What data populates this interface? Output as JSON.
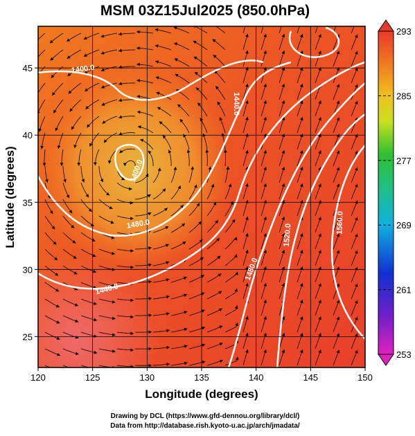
{
  "title": "MSM 03Z15Jul2025 (850.0hPa)",
  "x_label": "Longitude (degrees)",
  "y_label": "Latitude  (degrees)",
  "xlim": [
    120,
    150
  ],
  "xticks": [
    120,
    125,
    130,
    135,
    140,
    145,
    150
  ],
  "ylim": [
    22.7,
    48.1
  ],
  "yticks": [
    25,
    30,
    35,
    40,
    45
  ],
  "colorbar": {
    "lim": [
      253,
      293
    ],
    "ticks": [
      253,
      261,
      269,
      277,
      285,
      293
    ]
  },
  "contour_labels": [
    "1400.0",
    "1440.0",
    "1400.0",
    "1480.0",
    "1440.0",
    "1480.0",
    "1520.0",
    "1560.0"
  ],
  "footer": [
    "Drawing by DCL (https://www.gfd-dennou.org/library/dcl/)",
    "Data from http://database.rish.kyoto-u.ac.jp/arch/jmadata/"
  ]
}
